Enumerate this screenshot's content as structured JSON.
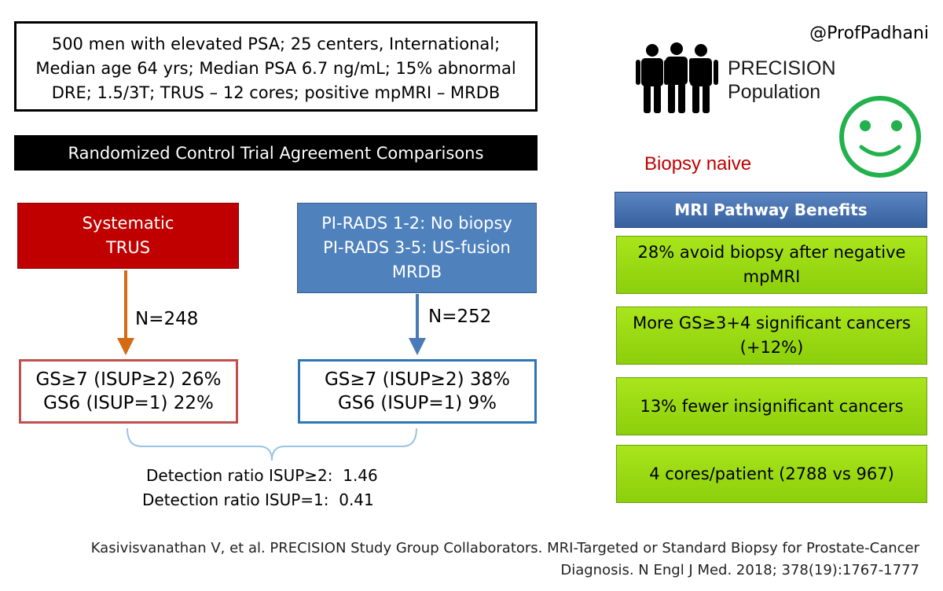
{
  "info_box": {
    "line1": "500 men with elevated PSA; 25 centers, International;",
    "line2": "Median age 64 yrs; Median PSA 6.7 ng/mL; 15% abnormal",
    "line3": "DRE; 1.5/3T; TRUS – 12 cores; positive mpMRI – MRDB"
  },
  "rct_header": "Randomized Control Trial Agreement Comparisons",
  "systematic": {
    "line1": "Systematic",
    "line2": "TRUS",
    "n": "N=248"
  },
  "pirads": {
    "line1": "PI-RADS 1-2: No biopsy",
    "line2": "PI-RADS 3-5: US-fusion",
    "line3": "MRDB",
    "n": "N=252"
  },
  "results": {
    "systematic": {
      "line1": "GS≥7 (ISUP≥2) 26%",
      "line2": "GS6 (ISUP=1) 22%"
    },
    "pirads": {
      "line1": "GS≥7 (ISUP≥2) 38%",
      "line2": "GS6 (ISUP=1) 9%"
    }
  },
  "detection": {
    "line1": "Detection ratio ISUP≥2:  1.46",
    "line2": "Detection ratio ISUP=1:  0.41"
  },
  "handle": "@ProfPadhani",
  "population": {
    "line1": "PRECISION",
    "line2": "Population"
  },
  "biopsy_naive": "Biopsy naive",
  "benefits": {
    "header": "MRI Pathway Benefits",
    "items": [
      {
        "line1": "28% avoid biopsy after negative",
        "line2": "mpMRI"
      },
      {
        "line1": "More GS≥3+4 significant cancers",
        "line2": "(+12%)"
      },
      {
        "line1": "13% fewer insignificant cancers",
        "line2": ""
      },
      {
        "line1": "4 cores/patient (2788 vs 967)",
        "line2": ""
      }
    ]
  },
  "citation": {
    "line1": "Kasivisvanathan V, et al. PRECISION Study Group Collaborators. MRI-Targeted or Standard Biopsy for Prostate-Cancer",
    "line2": "Diagnosis. N Engl J Med. 2018; 378(19):1767-1777"
  },
  "colors": {
    "red": "#c00000",
    "blue": "#4f81bd",
    "orange_arrow": "#d46a12",
    "blue_arrow": "#4a7ab8",
    "green_box": "#99d814",
    "smiley": "#22b14c"
  },
  "icons": [
    "people-icon",
    "smiley-icon"
  ]
}
